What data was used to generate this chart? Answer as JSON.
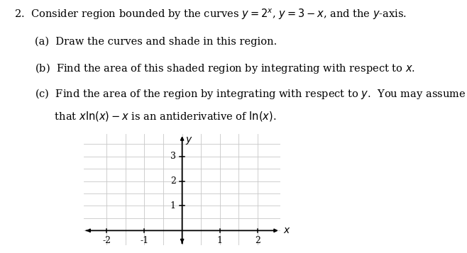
{
  "title_text": "2.  Consider region bounded by the curves $y = 2^x$, $y = 3 - x$, and the $y$-axis.",
  "item_a": "(a)  Draw the curves and shade in this region.",
  "item_b": "(b)  Find the area of this shaded region by integrating with respect to $x$.",
  "item_c1": "(c)  Find the area of the region by integrating with respect to $y$.  You may assume",
  "item_c2": "      that $x\\ln(x) - x$ is an antiderivative of $\\ln(x)$.",
  "graph": {
    "xlim": [
      -2.6,
      2.6
    ],
    "ylim": [
      -0.6,
      3.9
    ],
    "xticks": [
      -2,
      -1,
      1,
      2
    ],
    "yticks": [
      1,
      2,
      3
    ],
    "xlabel": "$x$",
    "ylabel": "$y$",
    "grid_color": "#c8c8c8",
    "axis_color": "#000000",
    "tick_label_fontsize": 9,
    "grid_minor_step": 0.5,
    "grid_major_step": 1
  },
  "background_color": "#ffffff",
  "text_color": "#000000",
  "font_size_title": 10.5,
  "font_size_items": 10.5
}
